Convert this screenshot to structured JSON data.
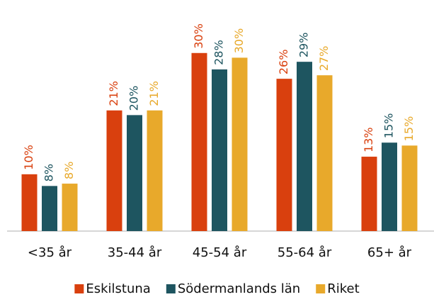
{
  "chart_data": {
    "type": "bar",
    "categories": [
      "<35 år",
      "35-44 år",
      "45-54 år",
      "55-64 år",
      "65+ år"
    ],
    "series": [
      {
        "name": "Eskilstuna",
        "color": "#d9400e",
        "values": [
          9.7,
          20.6,
          30.4,
          26.0,
          12.7
        ],
        "value_labels": [
          "10%",
          "21%",
          "30%",
          "26%",
          "13%"
        ]
      },
      {
        "name": "Södermanlands län",
        "color": "#1e5560",
        "values": [
          7.7,
          19.8,
          27.6,
          28.9,
          15.1
        ],
        "value_labels": [
          "8%",
          "20%",
          "28%",
          "29%",
          "15%"
        ]
      },
      {
        "name": "Riket",
        "color": "#e8a92b",
        "values": [
          8.1,
          20.6,
          29.6,
          26.6,
          14.6
        ],
        "value_labels": [
          "8%",
          "21%",
          "30%",
          "27%",
          "15%"
        ]
      }
    ],
    "ylim": [
      0,
      36
    ],
    "legend": "bottom"
  }
}
